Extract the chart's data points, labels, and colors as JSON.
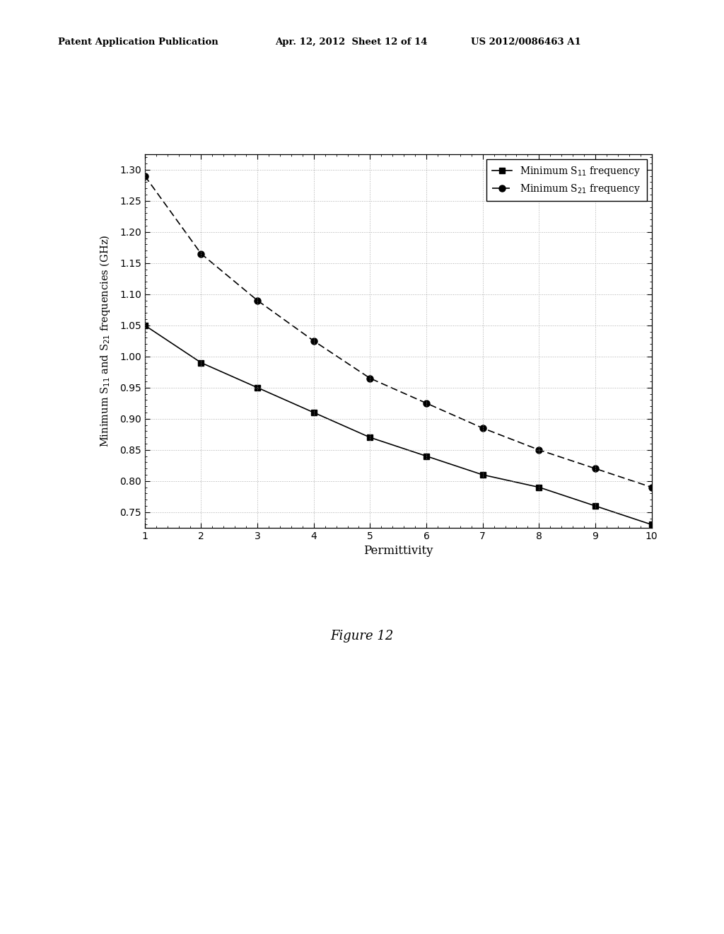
{
  "s11_x": [
    1,
    2,
    3,
    4,
    5,
    6,
    7,
    8,
    9,
    10
  ],
  "s11_y": [
    1.05,
    0.99,
    0.95,
    0.91,
    0.87,
    0.84,
    0.81,
    0.79,
    0.76,
    0.73
  ],
  "s21_x": [
    1,
    2,
    3,
    4,
    5,
    6,
    7,
    8,
    9,
    10
  ],
  "s21_y": [
    1.29,
    1.165,
    1.09,
    1.025,
    0.965,
    0.925,
    0.885,
    0.85,
    0.82,
    0.79
  ],
  "xlabel": "Permittivity",
  "ylabel": "Minimum S$_{11}$ and S$_{21}$ frequencies (GHz)",
  "xlim": [
    1,
    10
  ],
  "ylim": [
    0.725,
    1.325
  ],
  "yticks": [
    0.75,
    0.8,
    0.85,
    0.9,
    0.95,
    1.0,
    1.05,
    1.1,
    1.15,
    1.2,
    1.25,
    1.3
  ],
  "xticks": [
    1,
    2,
    3,
    4,
    5,
    6,
    7,
    8,
    9,
    10
  ],
  "legend_s11": "Minimum S$_{11}$ frequency",
  "legend_s21": "Minimum S$_{21}$ frequency",
  "line_color": "#000000",
  "marker_color": "#000000",
  "background_color": "#ffffff",
  "header_left": "Patent Application Publication",
  "header_mid": "Apr. 12, 2012  Sheet 12 of 14",
  "header_right": "US 2012/0086463 A1",
  "figure_caption": "Figure 12",
  "fig_width": 10.24,
  "fig_height": 13.2
}
